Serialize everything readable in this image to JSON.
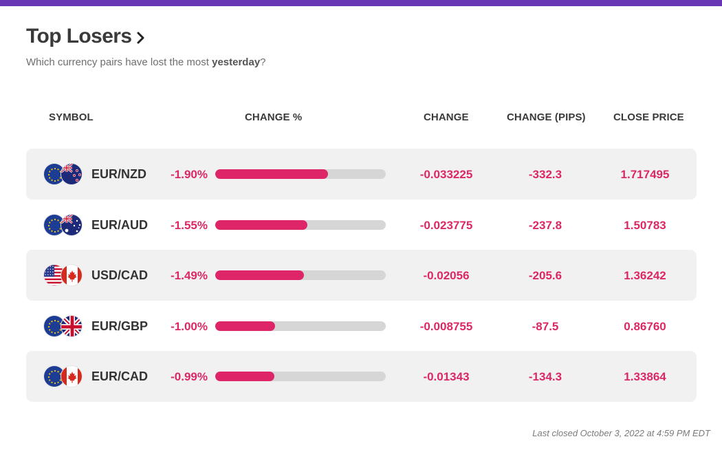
{
  "header": {
    "title": "Top Losers",
    "subtitle_prefix": "Which currency pairs have lost the most ",
    "subtitle_highlight": "yesterday",
    "subtitle_suffix": "?"
  },
  "table": {
    "columns": {
      "symbol": "SYMBOL",
      "change_pct": "CHANGE %",
      "change": "CHANGE",
      "change_pips": "CHANGE (PIPS)",
      "close_price": "CLOSE PRICE"
    },
    "rows": [
      {
        "symbol": "EUR/NZD",
        "change_pct": "-1.90%",
        "bar_fraction": 0.66,
        "change": "-0.033225",
        "change_pips": "-332.3",
        "close_price": "1.717495",
        "flag1": "eu-flag-icon",
        "flag2": "new-zealand-flag-icon"
      },
      {
        "symbol": "EUR/AUD",
        "change_pct": "-1.55%",
        "bar_fraction": 0.54,
        "change": "-0.023775",
        "change_pips": "-237.8",
        "close_price": "1.50783",
        "flag1": "eu-flag-icon",
        "flag2": "australia-flag-icon"
      },
      {
        "symbol": "USD/CAD",
        "change_pct": "-1.49%",
        "bar_fraction": 0.52,
        "change": "-0.02056",
        "change_pips": "-205.6",
        "close_price": "1.36242",
        "flag1": "usa-flag-icon",
        "flag2": "canada-flag-icon"
      },
      {
        "symbol": "EUR/GBP",
        "change_pct": "-1.00%",
        "bar_fraction": 0.35,
        "change": "-0.008755",
        "change_pips": "-87.5",
        "close_price": "0.86760",
        "flag1": "eu-flag-icon",
        "flag2": "uk-flag-icon"
      },
      {
        "symbol": "EUR/CAD",
        "change_pct": "-0.99%",
        "bar_fraction": 0.345,
        "change": "-0.01343",
        "change_pips": "-134.3",
        "close_price": "1.33864",
        "flag1": "eu-flag-icon",
        "flag2": "canada-flag-icon"
      }
    ]
  },
  "footer": {
    "last_closed": "Last closed October 3, 2022 at 4:59 PM EDT"
  },
  "colors": {
    "accent_bar": "#6a35b4",
    "loss": "#dc2766",
    "bar_track": "#d6d6d6"
  }
}
